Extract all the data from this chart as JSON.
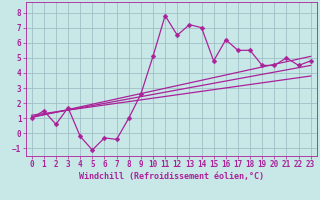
{
  "title": "",
  "xlabel": "Windchill (Refroidissement éolien,°C)",
  "xlim": [
    -0.5,
    23.5
  ],
  "ylim": [
    -1.5,
    8.7
  ],
  "xticks": [
    0,
    1,
    2,
    3,
    4,
    5,
    6,
    7,
    8,
    9,
    10,
    11,
    12,
    13,
    14,
    15,
    16,
    17,
    18,
    19,
    20,
    21,
    22,
    23
  ],
  "yticks": [
    -1,
    0,
    1,
    2,
    3,
    4,
    5,
    6,
    7,
    8
  ],
  "bg_color": "#c8e8e8",
  "line_color": "#aa2299",
  "grid_color": "#9ab8c0",
  "data_line": {
    "x": [
      0,
      1,
      2,
      3,
      4,
      5,
      6,
      7,
      8,
      9,
      10,
      11,
      12,
      13,
      14,
      15,
      16,
      17,
      18,
      19,
      20,
      21,
      22,
      23
    ],
    "y": [
      1.0,
      1.5,
      0.6,
      1.7,
      -0.2,
      -1.1,
      -0.3,
      -0.4,
      1.0,
      2.6,
      5.1,
      7.8,
      6.5,
      7.2,
      7.0,
      4.8,
      6.2,
      5.5,
      5.5,
      4.5,
      4.5,
      5.0,
      4.5,
      4.8
    ]
  },
  "regression_lines": [
    {
      "x": [
        0,
        23
      ],
      "y": [
        1.05,
        5.1
      ]
    },
    {
      "x": [
        0,
        23
      ],
      "y": [
        1.1,
        4.5
      ]
    },
    {
      "x": [
        0,
        23
      ],
      "y": [
        1.2,
        3.8
      ]
    }
  ],
  "xlabel_fontsize": 6,
  "tick_fontsize": 5.5,
  "line_width": 0.9,
  "marker_size": 2.5
}
